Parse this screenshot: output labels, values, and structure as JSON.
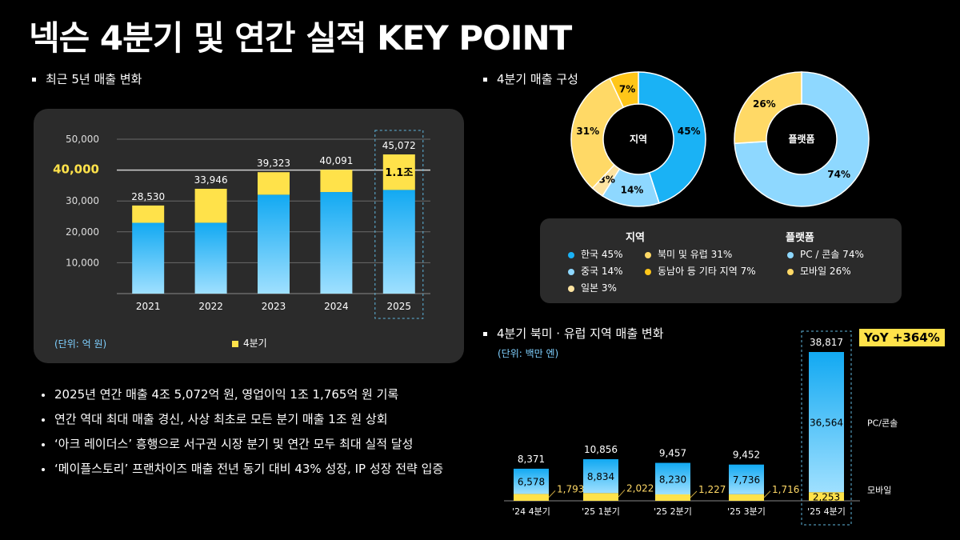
{
  "title": "넥슨 4분기 및 연간 실적 KEY POINT",
  "sections": {
    "annual": "최근 5년 매출 변화",
    "q4_composition": "4분기 매출 구성",
    "na_eu": "4분기 북미 · 유럽 지역 매출 변화"
  },
  "colors": {
    "blue": "#1ab2f5",
    "light_blue": "#8ed8ff",
    "yellow": "#ffe24a",
    "gold": "#ffc619",
    "light_yellow": "#fde3a0",
    "yellow_soft": "#ffd966"
  },
  "chart_data": [
    {
      "type": "bar",
      "name": "annual_revenue",
      "categories": [
        "2021",
        "2022",
        "2023",
        "2024",
        "2025"
      ],
      "totals": [
        28530,
        33946,
        39323,
        40091,
        45072
      ],
      "total_labels": [
        "28,530",
        "33,946",
        "39,323",
        "40,091",
        "45,072"
      ],
      "q4_values": [
        5600,
        11000,
        7300,
        7200,
        11500
      ],
      "q4_label_2025": "1.1조",
      "yticks": [
        "10,000",
        "20,000",
        "30,000",
        "40,000",
        "50,000"
      ],
      "ytick_values": [
        10000,
        20000,
        30000,
        40000,
        50000
      ],
      "highlight_tick": "40,000",
      "ylim": [
        0,
        50000
      ],
      "unit": "(단위: 억 원)",
      "legend": "4분기"
    },
    {
      "type": "pie",
      "name": "region",
      "center_label": "지역",
      "slices": [
        {
          "label": "한국",
          "value": 45,
          "text": "45%",
          "color": "#1ab2f5"
        },
        {
          "label": "중국",
          "value": 14,
          "text": "14%",
          "color": "#8ed8ff"
        },
        {
          "label": "일본",
          "value": 3,
          "text": "3%",
          "color": "#fde3a0"
        },
        {
          "label": "북미 및 유럽",
          "value": 31,
          "text": "31%",
          "color": "#ffd966"
        },
        {
          "label": "동남아 등 기타 지역",
          "value": 7,
          "text": "7%",
          "color": "#ffc619"
        }
      ]
    },
    {
      "type": "pie",
      "name": "platform",
      "center_label": "플랫폼",
      "slices": [
        {
          "label": "PC / 콘솔",
          "value": 74,
          "text": "74%",
          "color": "#8ed8ff"
        },
        {
          "label": "모바일",
          "value": 26,
          "text": "26%",
          "color": "#ffd966"
        }
      ]
    },
    {
      "type": "bar",
      "name": "na_eu_quarterly",
      "categories": [
        "'24 4분기",
        "'25 1분기",
        "'25 2분기",
        "'25 3분기",
        "'25 4분기"
      ],
      "totals": [
        "8,371",
        "10,856",
        "9,457",
        "9,452",
        "38,817"
      ],
      "pc_values": [
        6578,
        8834,
        8230,
        7736,
        36564
      ],
      "pc_labels": [
        "6,578",
        "8,834",
        "8,230",
        "7,736",
        "36,564"
      ],
      "mobile_values": [
        1793,
        2022,
        1227,
        1716,
        2253
      ],
      "mobile_labels": [
        "1,793",
        "2,022",
        "1,227",
        "1,716",
        "2,253"
      ],
      "series_names": [
        "PC/콘솔",
        "모바일"
      ],
      "unit": "(단위: 백만 엔)",
      "yoy": "YoY +364%"
    }
  ],
  "legend": {
    "region_title": "지역",
    "platform_title": "플랫폼",
    "region_items": [
      "한국 45%",
      "중국 14%",
      "일본 3%",
      "북미 및 유럽 31%",
      "동남아 등 기타 지역 7%"
    ],
    "platform_items": [
      "PC / 콘솔 74%",
      "모바일 26%"
    ]
  },
  "bullets": [
    "2025년 연간 매출 4조 5,072억 원, 영업이익 1조 1,765억 원 기록",
    "연간 역대 최대 매출 경신, 사상 최초로 모든 분기 매출 1조 원 상회",
    "‘아크 레이더스’ 흥행으로 서구권 시장 분기 및 연간 모두 최대 실적 달성",
    "‘메이플스토리’ 프랜차이즈 매출 전년 동기 대비 43% 성장, IP 성장 전략 입증"
  ]
}
